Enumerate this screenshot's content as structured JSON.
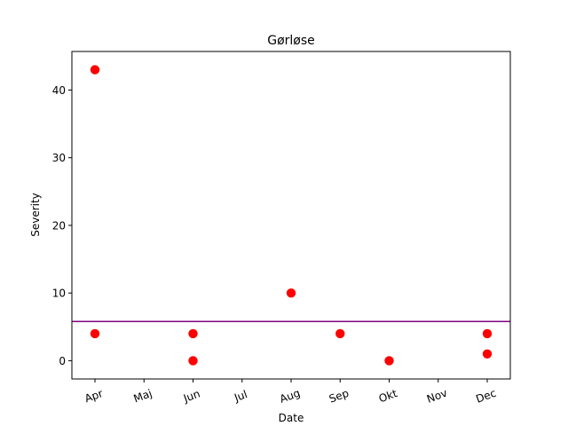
{
  "chart_data": {
    "type": "scatter",
    "title": "Gørløse",
    "xlabel": "Date",
    "ylabel": "Severity",
    "x_categories": [
      "Apr",
      "Maj",
      "Jun",
      "Jul",
      "Aug",
      "Sep",
      "Okt",
      "Nov",
      "Dec"
    ],
    "ylim": [
      -2.7,
      45.7
    ],
    "y_ticks": [
      0,
      10,
      20,
      30,
      40
    ],
    "points": [
      {
        "x": "Apr",
        "y": 43
      },
      {
        "x": "Apr",
        "y": 4
      },
      {
        "x": "Jun",
        "y": 4
      },
      {
        "x": "Jun",
        "y": 0
      },
      {
        "x": "Aug",
        "y": 10
      },
      {
        "x": "Sep",
        "y": 4
      },
      {
        "x": "Okt",
        "y": 0
      },
      {
        "x": "Dec",
        "y": 4
      },
      {
        "x": "Dec",
        "y": 1
      }
    ],
    "reference_line": {
      "y": 5.8,
      "color": "#800080"
    },
    "point_color": "#ff0000",
    "grid": false,
    "legend": "none"
  }
}
